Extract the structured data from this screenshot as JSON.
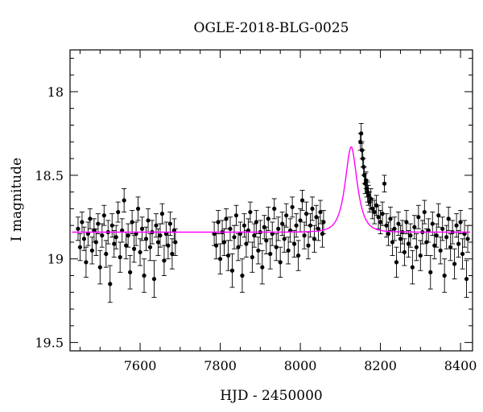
{
  "chart_data": {
    "type": "scatter",
    "title": "OGLE-2018-BLG-0025",
    "xlabel": "HJD - 2450000",
    "ylabel": "I magnitude",
    "xlim": [
      7425,
      8430
    ],
    "ylim": [
      19.55,
      17.75
    ],
    "y_inverted": true,
    "x_ticks": [
      7600,
      7800,
      8000,
      8200,
      8400
    ],
    "y_ticks": [
      18,
      18.5,
      19,
      19.5
    ],
    "x_tick_labels": [
      "7600",
      "7800",
      "8000",
      "8200",
      "8400"
    ],
    "y_tick_labels": [
      "18",
      "18.5",
      "19",
      "19.5"
    ],
    "grid": false,
    "legend": "none",
    "observing_seasons": [
      {
        "start": 7440,
        "end": 7690
      },
      {
        "start": 7780,
        "end": 8060
      },
      {
        "start": 8140,
        "end": 8420
      }
    ],
    "series": [
      {
        "kind": "points_with_error_bars",
        "color": "#000000",
        "points": [
          [
            7445,
            18.82,
            0.07
          ],
          [
            7450,
            18.93,
            0.08
          ],
          [
            7455,
            18.78,
            0.06
          ],
          [
            7460,
            18.88,
            0.07
          ],
          [
            7465,
            19.02,
            0.09
          ],
          [
            7470,
            18.85,
            0.07
          ],
          [
            7475,
            18.76,
            0.06
          ],
          [
            7480,
            18.95,
            0.08
          ],
          [
            7485,
            18.83,
            0.07
          ],
          [
            7490,
            18.9,
            0.08
          ],
          [
            7495,
            18.79,
            0.06
          ],
          [
            7500,
            19.05,
            0.1
          ],
          [
            7505,
            18.86,
            0.07
          ],
          [
            7510,
            18.74,
            0.06
          ],
          [
            7515,
            18.97,
            0.08
          ],
          [
            7520,
            18.84,
            0.07
          ],
          [
            7525,
            19.15,
            0.11
          ],
          [
            7530,
            18.8,
            0.07
          ],
          [
            7535,
            18.91,
            0.08
          ],
          [
            7540,
            18.87,
            0.07
          ],
          [
            7545,
            18.72,
            0.06
          ],
          [
            7550,
            18.99,
            0.09
          ],
          [
            7555,
            18.83,
            0.07
          ],
          [
            7560,
            18.65,
            0.07
          ],
          [
            7565,
            18.92,
            0.08
          ],
          [
            7570,
            18.86,
            0.07
          ],
          [
            7575,
            19.08,
            0.1
          ],
          [
            7580,
            18.78,
            0.07
          ],
          [
            7585,
            18.94,
            0.08
          ],
          [
            7590,
            18.85,
            0.07
          ],
          [
            7595,
            18.7,
            0.07
          ],
          [
            7600,
            18.96,
            0.08
          ],
          [
            7605,
            18.82,
            0.07
          ],
          [
            7610,
            19.1,
            0.1
          ],
          [
            7615,
            18.88,
            0.07
          ],
          [
            7620,
            18.77,
            0.07
          ],
          [
            7625,
            18.93,
            0.08
          ],
          [
            7630,
            18.84,
            0.07
          ],
          [
            7635,
            19.12,
            0.11
          ],
          [
            7640,
            18.8,
            0.07
          ],
          [
            7645,
            18.9,
            0.08
          ],
          [
            7650,
            18.86,
            0.07
          ],
          [
            7655,
            18.73,
            0.06
          ],
          [
            7660,
            19.01,
            0.09
          ],
          [
            7665,
            18.85,
            0.07
          ],
          [
            7670,
            18.92,
            0.08
          ],
          [
            7675,
            18.79,
            0.07
          ],
          [
            7680,
            18.97,
            0.09
          ],
          [
            7685,
            18.83,
            0.07
          ],
          [
            7688,
            18.9,
            0.08
          ],
          [
            7785,
            18.85,
            0.07
          ],
          [
            7790,
            18.92,
            0.08
          ],
          [
            7795,
            18.78,
            0.07
          ],
          [
            7800,
            19.0,
            0.09
          ],
          [
            7805,
            18.84,
            0.07
          ],
          [
            7810,
            18.9,
            0.08
          ],
          [
            7815,
            18.76,
            0.06
          ],
          [
            7820,
            18.98,
            0.09
          ],
          [
            7825,
            18.82,
            0.07
          ],
          [
            7830,
            19.07,
            0.1
          ],
          [
            7835,
            18.87,
            0.07
          ],
          [
            7840,
            18.74,
            0.06
          ],
          [
            7845,
            18.93,
            0.08
          ],
          [
            7850,
            18.85,
            0.07
          ],
          [
            7855,
            19.1,
            0.1
          ],
          [
            7860,
            18.8,
            0.07
          ],
          [
            7865,
            18.91,
            0.08
          ],
          [
            7870,
            18.83,
            0.07
          ],
          [
            7875,
            18.72,
            0.06
          ],
          [
            7880,
            18.99,
            0.09
          ],
          [
            7885,
            18.86,
            0.07
          ],
          [
            7890,
            18.78,
            0.07
          ],
          [
            7895,
            18.95,
            0.08
          ],
          [
            7900,
            18.84,
            0.07
          ],
          [
            7905,
            19.05,
            0.1
          ],
          [
            7910,
            18.81,
            0.07
          ],
          [
            7915,
            18.89,
            0.08
          ],
          [
            7920,
            18.76,
            0.07
          ],
          [
            7925,
            18.97,
            0.09
          ],
          [
            7930,
            18.85,
            0.07
          ],
          [
            7935,
            18.7,
            0.06
          ],
          [
            7940,
            18.93,
            0.08
          ],
          [
            7945,
            18.82,
            0.07
          ],
          [
            7950,
            19.02,
            0.09
          ],
          [
            7955,
            18.79,
            0.07
          ],
          [
            7960,
            18.88,
            0.08
          ],
          [
            7965,
            18.74,
            0.07
          ],
          [
            7970,
            18.95,
            0.08
          ],
          [
            7975,
            18.83,
            0.07
          ],
          [
            7980,
            18.69,
            0.06
          ],
          [
            7985,
            18.91,
            0.08
          ],
          [
            7990,
            18.8,
            0.07
          ],
          [
            7995,
            18.98,
            0.09
          ],
          [
            8000,
            18.77,
            0.07
          ],
          [
            8005,
            18.65,
            0.06
          ],
          [
            8010,
            18.86,
            0.08
          ],
          [
            8015,
            18.73,
            0.07
          ],
          [
            8020,
            18.92,
            0.08
          ],
          [
            8025,
            18.8,
            0.07
          ],
          [
            8030,
            18.7,
            0.07
          ],
          [
            8035,
            18.88,
            0.08
          ],
          [
            8040,
            18.75,
            0.07
          ],
          [
            8045,
            18.82,
            0.07
          ],
          [
            8050,
            18.72,
            0.07
          ],
          [
            8055,
            18.85,
            0.08
          ],
          [
            8058,
            18.78,
            0.07
          ],
          [
            8150,
            18.3,
            0.05
          ],
          [
            8152,
            18.25,
            0.06
          ],
          [
            8154,
            18.35,
            0.05
          ],
          [
            8156,
            18.4,
            0.05
          ],
          [
            8158,
            18.45,
            0.05
          ],
          [
            8160,
            18.5,
            0.05
          ],
          [
            8162,
            18.55,
            0.06
          ],
          [
            8164,
            18.53,
            0.05
          ],
          [
            8166,
            18.58,
            0.05
          ],
          [
            8168,
            18.6,
            0.06
          ],
          [
            8170,
            18.62,
            0.06
          ],
          [
            8173,
            18.66,
            0.06
          ],
          [
            8176,
            18.64,
            0.06
          ],
          [
            8180,
            18.7,
            0.06
          ],
          [
            8185,
            18.72,
            0.07
          ],
          [
            8190,
            18.68,
            0.06
          ],
          [
            8195,
            18.75,
            0.07
          ],
          [
            8200,
            18.78,
            0.07
          ],
          [
            8205,
            18.73,
            0.07
          ],
          [
            8210,
            18.55,
            0.05
          ],
          [
            8215,
            18.8,
            0.07
          ],
          [
            8220,
            18.85,
            0.07
          ],
          [
            8225,
            18.76,
            0.07
          ],
          [
            8230,
            18.9,
            0.08
          ],
          [
            8235,
            18.82,
            0.07
          ],
          [
            8240,
            19.02,
            0.09
          ],
          [
            8245,
            18.79,
            0.07
          ],
          [
            8250,
            18.88,
            0.08
          ],
          [
            8255,
            18.84,
            0.07
          ],
          [
            8260,
            18.96,
            0.08
          ],
          [
            8265,
            18.78,
            0.07
          ],
          [
            8270,
            18.91,
            0.08
          ],
          [
            8275,
            18.86,
            0.07
          ],
          [
            8280,
            19.05,
            0.1
          ],
          [
            8285,
            18.81,
            0.07
          ],
          [
            8290,
            18.93,
            0.08
          ],
          [
            8295,
            18.75,
            0.07
          ],
          [
            8300,
            18.98,
            0.09
          ],
          [
            8305,
            18.84,
            0.07
          ],
          [
            8310,
            18.72,
            0.07
          ],
          [
            8315,
            18.9,
            0.08
          ],
          [
            8320,
            18.83,
            0.07
          ],
          [
            8325,
            19.08,
            0.1
          ],
          [
            8330,
            18.79,
            0.07
          ],
          [
            8335,
            18.92,
            0.08
          ],
          [
            8340,
            18.86,
            0.07
          ],
          [
            8345,
            18.74,
            0.07
          ],
          [
            8350,
            18.95,
            0.08
          ],
          [
            8355,
            18.82,
            0.07
          ],
          [
            8360,
            19.1,
            0.1
          ],
          [
            8365,
            18.87,
            0.07
          ],
          [
            8370,
            18.76,
            0.07
          ],
          [
            8375,
            18.93,
            0.08
          ],
          [
            8380,
            18.84,
            0.07
          ],
          [
            8385,
            19.03,
            0.09
          ],
          [
            8390,
            18.8,
            0.07
          ],
          [
            8395,
            18.91,
            0.08
          ],
          [
            8400,
            18.78,
            0.07
          ],
          [
            8405,
            18.97,
            0.09
          ],
          [
            8410,
            18.85,
            0.08
          ],
          [
            8415,
            19.12,
            0.11
          ],
          [
            8418,
            18.88,
            0.08
          ]
        ]
      },
      {
        "kind": "model_curve",
        "color": "#ff00ff",
        "baseline": 18.84,
        "peak_time": 8127,
        "peak_mag": 18.33,
        "timescale": 22,
        "x_start": 7430,
        "x_end": 8425
      }
    ]
  }
}
